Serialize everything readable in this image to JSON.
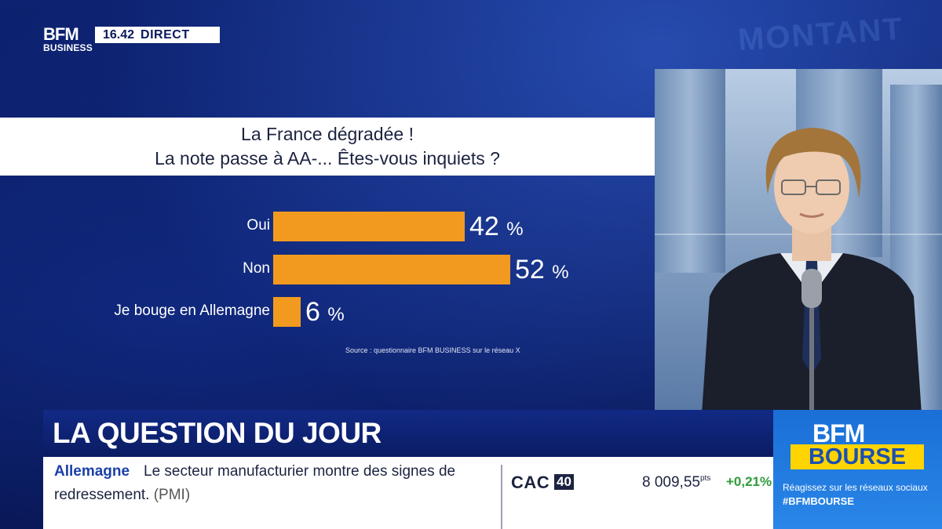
{
  "broadcast": {
    "logo_top": "BFM",
    "logo_bottom": "BUSINESS",
    "time": "16.42",
    "live_label": "DIRECT"
  },
  "poll": {
    "title_line1": "La France dégradée !",
    "title_line2": "La note passe à AA-... Êtes-vous inquiets ?",
    "source": "Source : questionnaire BFM BUSINESS sur le réseau X"
  },
  "chart_data": {
    "type": "bar",
    "orientation": "horizontal",
    "categories": [
      "Oui",
      "Non",
      "Je bouge en Allemagne"
    ],
    "values": [
      42,
      52,
      6
    ],
    "value_suffix": "%",
    "title": "La France dégradée ! La note passe à AA-... Êtes-vous inquiets ?",
    "color": "#f29a1f"
  },
  "lower_third": {
    "headline": "LA QUESTION DU JOUR",
    "news_topic": "Allemagne",
    "news_text_1": "Le secteur manufacturier montre des signes de",
    "news_text_2": "redressement.",
    "news_note": "(PMI)"
  },
  "market": {
    "index_name": "CAC",
    "index_number": "40",
    "value": "8 009,55",
    "unit": "pts",
    "variation": "+0,21%"
  },
  "promo": {
    "brand": "BFM",
    "program": "BOURSE",
    "tagline": "Réagissez sur les réseaux sociaux",
    "hashtag": "#BFMBOURSE"
  },
  "colors": {
    "background": "#0a1a5c",
    "bar": "#f29a1f",
    "positive": "#2f9b3a",
    "promo_yellow": "#ffd400"
  }
}
